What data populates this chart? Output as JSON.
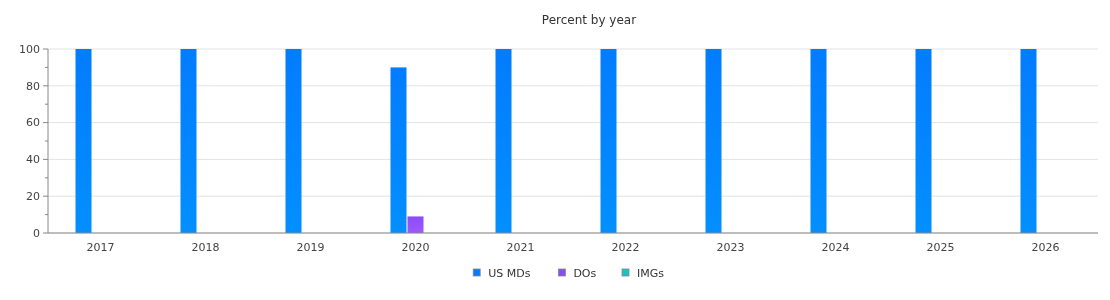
{
  "chart_data": {
    "type": "bar",
    "title": "Percent by year",
    "categories": [
      "2017",
      "2018",
      "2019",
      "2020",
      "2021",
      "2022",
      "2023",
      "2024",
      "2025",
      "2026"
    ],
    "series": [
      {
        "name": "US MDs",
        "color": "#037cff",
        "values": [
          100,
          100,
          100,
          90,
          100,
          100,
          100,
          100,
          100,
          100
        ]
      },
      {
        "name": "DOs",
        "color": "#8a4cf7",
        "values": [
          0,
          0,
          0,
          9,
          0,
          0,
          0,
          0,
          0,
          0
        ]
      },
      {
        "name": "IMGs",
        "color": "#17c4c4",
        "values": [
          0,
          0,
          0,
          0,
          0,
          0,
          0,
          0,
          0,
          0
        ]
      }
    ],
    "ylim": [
      0,
      100
    ],
    "yticks": [
      0,
      20,
      40,
      60,
      80,
      100
    ],
    "grid": "y",
    "legend": "bottom"
  }
}
